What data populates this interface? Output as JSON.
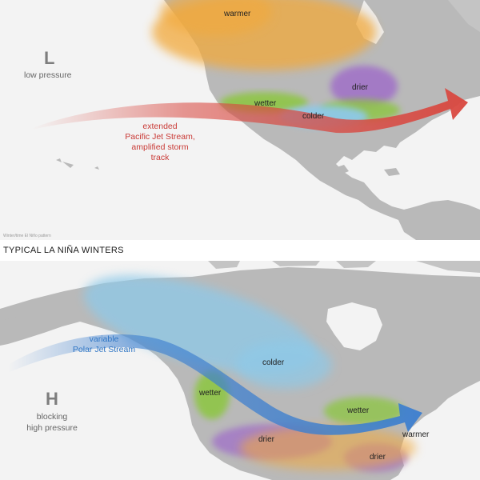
{
  "top_map": {
    "pressure_symbol": "L",
    "pressure_label": "low pressure",
    "regions": {
      "warmer": "warmer",
      "drier": "drier",
      "wetter": "wetter",
      "colder": "colder"
    },
    "jet_label_lines": [
      "extended",
      "Pacific Jet Stream,",
      "amplified storm",
      "track"
    ],
    "credit": "Winter/time El Niño pattern"
  },
  "section_title": "TYPICAL LA NIÑA WINTERS",
  "bottom_map": {
    "pressure_symbol": "H",
    "pressure_label_lines": [
      "blocking",
      "high pressure"
    ],
    "regions": {
      "colder": "colder",
      "wetter_west": "wetter",
      "wetter_east": "wetter",
      "drier_south": "drier",
      "drier_se": "drier",
      "warmer": "warmer"
    },
    "jet_label_lines": [
      "variable",
      "Polar Jet Stream"
    ]
  },
  "colors": {
    "land": "#b9b9b9",
    "ocean": "#f3f3f3",
    "warmer": "#f2a93b",
    "drier": "#a070c8",
    "wetter": "#8cc63f",
    "colder": "#8ec9e8",
    "pacific_jet": "#d9463e",
    "polar_jet": "#3d7fcf"
  }
}
